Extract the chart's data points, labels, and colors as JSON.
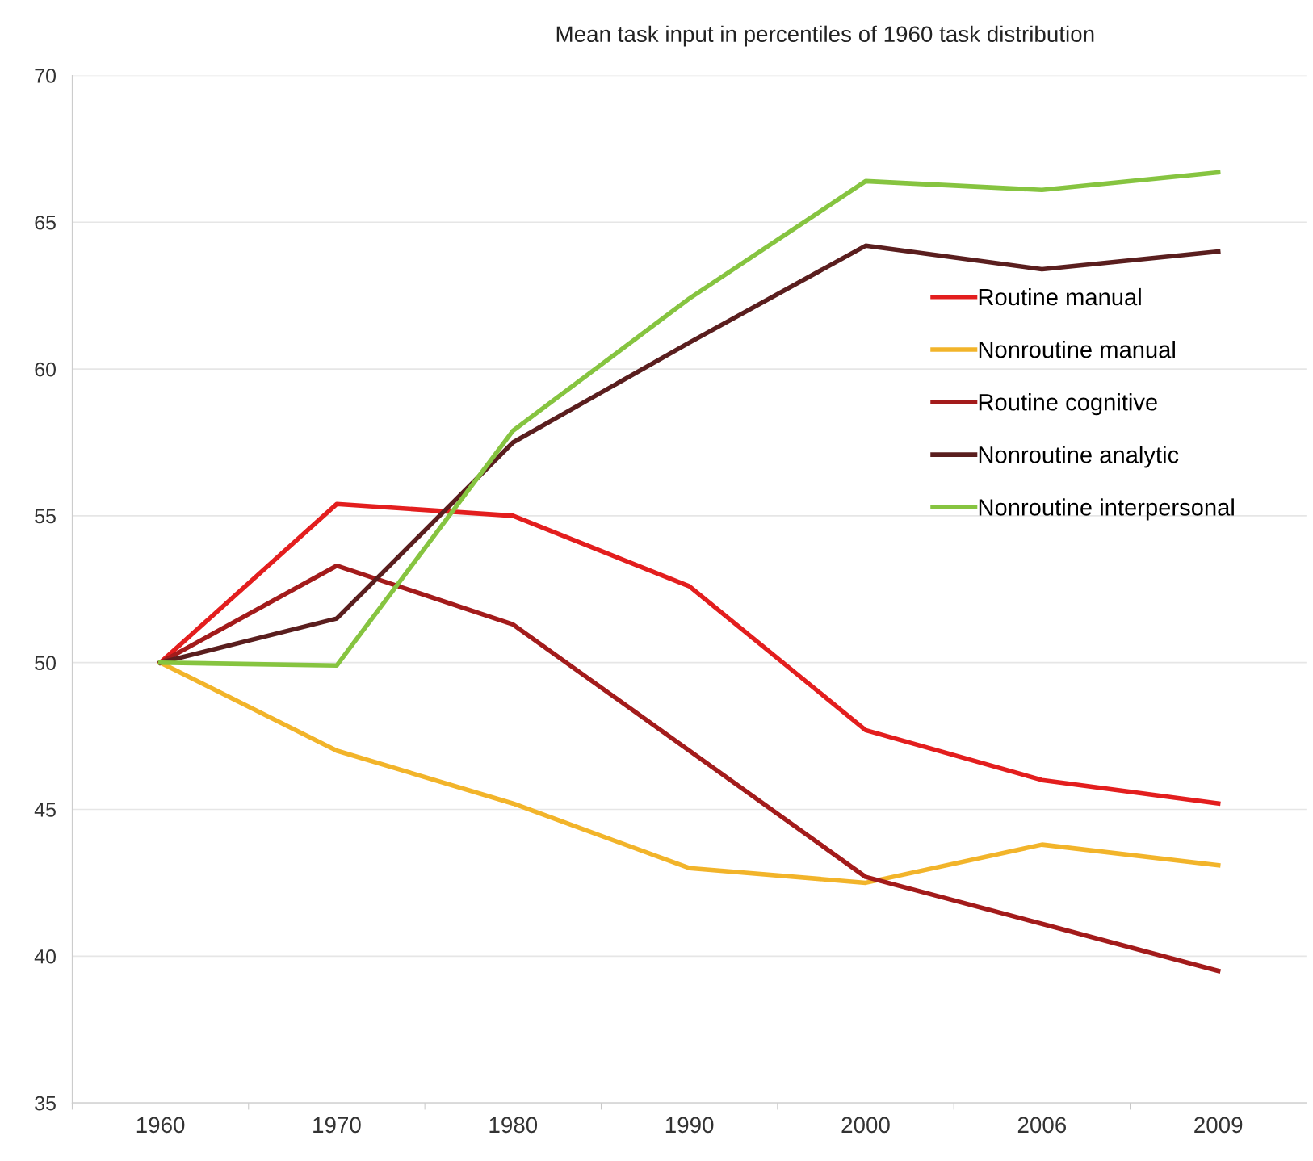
{
  "chart_data": {
    "type": "line",
    "title": "Mean task input in percentiles of 1960 task distribution",
    "categories": [
      "1960",
      "1970",
      "1980",
      "1990",
      "2000",
      "2006",
      "2009"
    ],
    "series": [
      {
        "name": "Routine manual",
        "color": "#e31e1e",
        "values": [
          50,
          55.4,
          55.0,
          52.6,
          47.7,
          46.0,
          45.2
        ]
      },
      {
        "name": "Nonroutine manual",
        "color": "#f2b42a",
        "values": [
          50,
          47.0,
          45.2,
          43.0,
          42.5,
          43.8,
          43.1
        ]
      },
      {
        "name": "Routine cognitive",
        "color": "#a31b1b",
        "values": [
          50,
          53.3,
          51.3,
          47.0,
          42.7,
          41.1,
          39.5
        ]
      },
      {
        "name": "Nonroutine analytic",
        "color": "#5a1e1e",
        "values": [
          50,
          51.5,
          57.5,
          60.9,
          64.2,
          63.4,
          64.0
        ]
      },
      {
        "name": "Nonroutine interpersonal",
        "color": "#86c440",
        "values": [
          50,
          49.9,
          57.9,
          62.4,
          66.4,
          66.1,
          66.7
        ]
      }
    ],
    "ylim": [
      35,
      70
    ],
    "yticks": [
      35,
      40,
      45,
      50,
      55,
      60,
      65,
      70
    ],
    "grid": "y",
    "legend": "right",
    "marker": "none",
    "line_style": "solid"
  }
}
